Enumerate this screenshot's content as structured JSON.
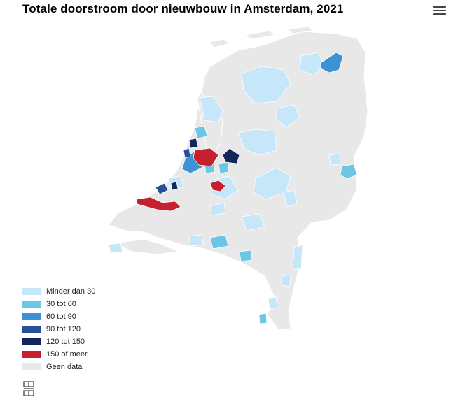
{
  "header": {
    "title": "Totale doorstroom door nieuwbouw in Amsterdam, 2021",
    "menu_icon": "hamburger-menu-icon"
  },
  "legend": {
    "items": [
      {
        "label": "Minder dan 30",
        "color": "#c6e6fa"
      },
      {
        "label": "30 tot 60",
        "color": "#6cc6e4"
      },
      {
        "label": "60 tot 90",
        "color": "#3c92d2"
      },
      {
        "label": "90 tot 120",
        "color": "#24519a"
      },
      {
        "label": "120 tot 150",
        "color": "#13285a"
      },
      {
        "label": "150 of meer",
        "color": "#c4202d"
      },
      {
        "label": "Geen data",
        "color": "#e8e8e8"
      }
    ]
  },
  "footer": {
    "logo_icon": "cbs-logo-icon"
  }
}
